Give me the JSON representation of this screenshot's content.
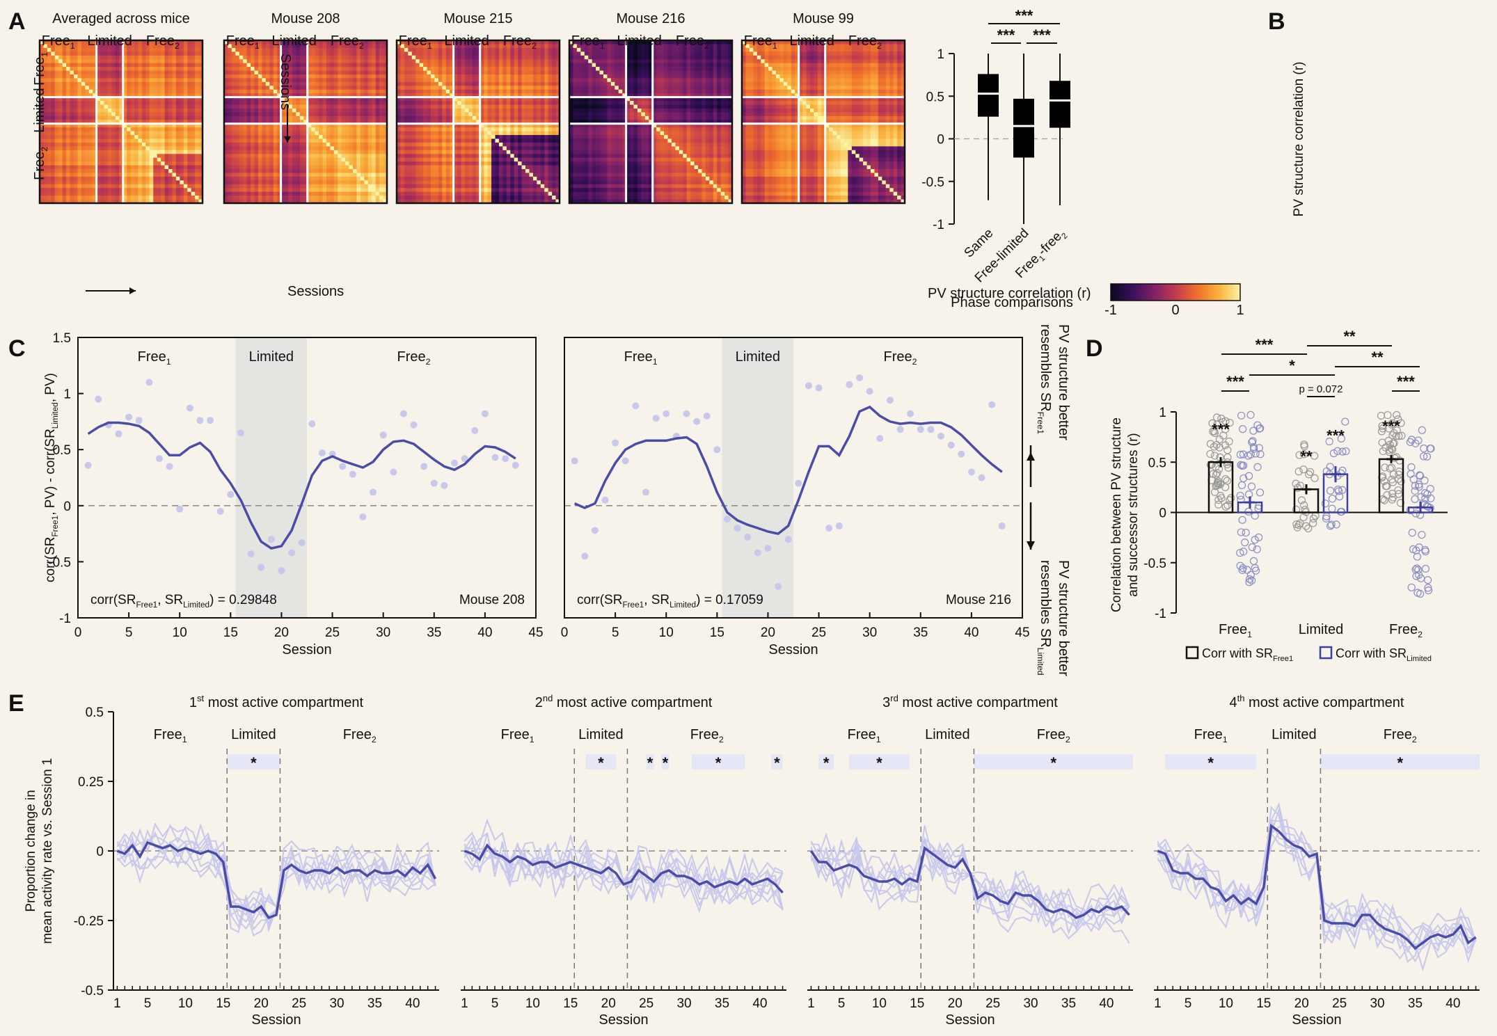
{
  "panels": {
    "a": "A",
    "b": "B",
    "c": "C",
    "d": "D",
    "e": "E"
  },
  "panel_a": {
    "matrices": [
      {
        "title": "Averaged across mice",
        "seed": 11,
        "contrast": 0.55,
        "base": 0.45
      },
      {
        "title": "Mouse 208",
        "seed": 23,
        "contrast": 0.75,
        "base": 0.55
      },
      {
        "title": "Mouse 215",
        "seed": 37,
        "contrast": 1.1,
        "base": 0.15
      },
      {
        "title": "Mouse 216",
        "seed": 51,
        "contrast": 1.0,
        "base": 0.2
      },
      {
        "title": "Mouse 99",
        "seed": 73,
        "contrast": 1.0,
        "base": 0.25
      }
    ],
    "phase_labels": {
      "free1": "Free",
      "limited": "Limited",
      "free2": "Free",
      "sub1": "1",
      "sub2": "2"
    },
    "sessions_label": "Sessions",
    "colorbar": {
      "label": "PV structure correlation (r)",
      "ticks": [
        "-1",
        "0",
        "1"
      ],
      "stops": [
        "#0a0a20",
        "#3a0f5c",
        "#7e2168",
        "#c13a4f",
        "#ef6f2c",
        "#f9b13b",
        "#fcf3a4"
      ]
    },
    "limited_index": [
      15,
      22
    ],
    "n_sessions": 43
  },
  "chart_data": [
    {
      "id": "B",
      "type": "boxplot",
      "ylabel": "PV structure correlation (r)",
      "xlabel": "Phase comparisons",
      "categories": [
        "Same",
        "Free-limited",
        "Free1-free2"
      ],
      "category_labels": [
        {
          "main": "Same",
          "sub": ""
        },
        {
          "main": "Free-limited",
          "sub": ""
        },
        {
          "main": "Free",
          "sub": "1",
          "tail": "-free",
          "sub2": "2"
        }
      ],
      "boxes": [
        {
          "min": -0.72,
          "q1": 0.26,
          "median": 0.53,
          "q3": 0.76,
          "max": 1.0
        },
        {
          "min": -1.0,
          "q1": -0.22,
          "median": 0.15,
          "q3": 0.47,
          "max": 1.0
        },
        {
          "min": -0.78,
          "q1": 0.13,
          "median": 0.45,
          "q3": 0.68,
          "max": 1.0
        }
      ],
      "ylim": [
        -1,
        1
      ],
      "yticks": [
        "-1",
        "-0.5",
        "0",
        "0.5",
        "1"
      ],
      "significance": [
        {
          "from": 0,
          "to": 1,
          "label": "***"
        },
        {
          "from": 1,
          "to": 2,
          "label": "***"
        },
        {
          "from": 0,
          "to": 2,
          "label": "***"
        }
      ]
    },
    {
      "id": "C1",
      "type": "line+scatter",
      "mouse": "Mouse 208",
      "annotation": "corr(SR",
      "annotation_sub1": "Free1",
      "annotation_mid": ", SR",
      "annotation_sub2": "Limited",
      "annotation_tail": ") =",
      "annotation_value": "0.29848",
      "xlim": [
        0,
        45
      ],
      "ylim": [
        -1,
        1.5
      ],
      "xticks": [
        "0",
        "5",
        "10",
        "15",
        "20",
        "25",
        "30",
        "35",
        "40",
        "45"
      ],
      "yticks": [
        "-1",
        "-0.5",
        "0",
        "0.5",
        "1",
        "1.5"
      ],
      "xlabel": "Session",
      "ylabel": "corr(SR",
      "ylabel_parts": [
        "corr(SR",
        "Free1",
        ", PV) - corr(SR",
        "Limited",
        ", PV)"
      ],
      "shaded": [
        15.5,
        22.5
      ],
      "phase_labels": [
        "Free",
        "Limited",
        "Free"
      ],
      "phase_subs": [
        "1",
        "",
        "2"
      ],
      "points_x": [
        1,
        2,
        3,
        4,
        5,
        6,
        7,
        8,
        9,
        10,
        11,
        12,
        13,
        14,
        15,
        16,
        17,
        18,
        19,
        20,
        21,
        22,
        23,
        24,
        25,
        26,
        27,
        28,
        29,
        30,
        31,
        32,
        33,
        34,
        35,
        36,
        37,
        38,
        39,
        40,
        41,
        42,
        43
      ],
      "points_y": [
        0.36,
        0.95,
        0.72,
        0.64,
        0.79,
        0.76,
        1.1,
        0.42,
        0.35,
        -0.03,
        0.87,
        0.76,
        0.76,
        -0.05,
        0.1,
        0.65,
        -0.43,
        -0.55,
        -0.3,
        -0.58,
        -0.42,
        -0.33,
        0.73,
        0.47,
        0.46,
        0.35,
        0.28,
        -0.1,
        0.12,
        0.63,
        0.3,
        0.82,
        0.72,
        0.35,
        0.2,
        0.18,
        0.38,
        0.42,
        0.67,
        0.82,
        0.43,
        0.42,
        0.36
      ],
      "smooth_y": [
        0.64,
        0.7,
        0.74,
        0.74,
        0.73,
        0.71,
        0.65,
        0.55,
        0.45,
        0.45,
        0.52,
        0.56,
        0.48,
        0.32,
        0.2,
        0.05,
        -0.15,
        -0.32,
        -0.38,
        -0.36,
        -0.22,
        0.02,
        0.27,
        0.4,
        0.44,
        0.4,
        0.37,
        0.34,
        0.39,
        0.5,
        0.57,
        0.58,
        0.55,
        0.48,
        0.41,
        0.35,
        0.32,
        0.37,
        0.46,
        0.53,
        0.52,
        0.48,
        0.42
      ]
    },
    {
      "id": "C2",
      "type": "line+scatter",
      "mouse": "Mouse 216",
      "annotation": "corr(SR",
      "annotation_sub1": "Free1",
      "annotation_mid": ", SR",
      "annotation_sub2": "Limited",
      "annotation_tail": ") =",
      "annotation_value": "0.17059",
      "xlim": [
        0,
        45
      ],
      "ylim": [
        -1,
        1.5
      ],
      "xticks": [
        "0",
        "5",
        "10",
        "15",
        "20",
        "25",
        "30",
        "35",
        "40",
        "45"
      ],
      "xlabel": "Session",
      "shaded": [
        15.5,
        22.5
      ],
      "phase_labels": [
        "Free",
        "Limited",
        "Free"
      ],
      "phase_subs": [
        "1",
        "",
        "2"
      ],
      "points_x": [
        1,
        2,
        3,
        4,
        5,
        6,
        7,
        8,
        9,
        10,
        11,
        12,
        13,
        14,
        15,
        16,
        17,
        18,
        19,
        20,
        21,
        22,
        23,
        24,
        25,
        26,
        27,
        28,
        29,
        30,
        31,
        32,
        33,
        34,
        35,
        36,
        37,
        38,
        39,
        40,
        41,
        42,
        43
      ],
      "points_y": [
        0.4,
        -0.45,
        -0.22,
        0.05,
        0.56,
        0.4,
        0.89,
        0.12,
        0.78,
        0.82,
        0.62,
        0.82,
        0.75,
        0.8,
        0.5,
        -0.12,
        -0.2,
        -0.28,
        -0.42,
        -0.38,
        -0.72,
        -0.3,
        0.2,
        1.07,
        1.05,
        -0.2,
        -0.18,
        1.08,
        1.14,
        1.02,
        0.6,
        0.94,
        0.68,
        0.82,
        0.68,
        0.68,
        0.62,
        0.54,
        0.46,
        0.3,
        0.25,
        0.9,
        -0.18
      ],
      "smooth_y": [
        0.02,
        -0.02,
        0.02,
        0.22,
        0.38,
        0.5,
        0.55,
        0.58,
        0.58,
        0.58,
        0.6,
        0.61,
        0.55,
        0.35,
        0.12,
        -0.06,
        -0.13,
        -0.17,
        -0.2,
        -0.23,
        -0.25,
        -0.18,
        0.05,
        0.3,
        0.53,
        0.53,
        0.45,
        0.62,
        0.84,
        0.88,
        0.8,
        0.75,
        0.73,
        0.74,
        0.73,
        0.74,
        0.74,
        0.7,
        0.63,
        0.54,
        0.45,
        0.37,
        0.3
      ]
    },
    {
      "id": "D",
      "type": "bar+scatter",
      "ylabel": [
        "Correlation between PV structure",
        "and successor structures (r)"
      ],
      "categories": [
        "Free1",
        "Limited",
        "Free2"
      ],
      "category_mains": [
        "Free",
        "Limited",
        "Free"
      ],
      "category_subs": [
        "1",
        "",
        "2"
      ],
      "ylim": [
        -1,
        1
      ],
      "yticks": [
        "-1",
        "-0.5",
        "0",
        "0.5",
        "1"
      ],
      "series": [
        {
          "name": "Corr with SR Free1",
          "legend_main": "Corr with SR",
          "legend_sub": "Free1",
          "color": "#111111",
          "values": [
            0.5,
            0.23,
            0.53
          ],
          "errors": [
            0.05,
            0.05,
            0.04
          ],
          "stars": [
            "***",
            "**",
            "***"
          ]
        },
        {
          "name": "Corr with SR Limited",
          "legend_main": "Corr with SR",
          "legend_sub": "Limited",
          "color": "#3b3f9e",
          "values": [
            0.1,
            0.38,
            0.05
          ],
          "errors": [
            0.06,
            0.08,
            0.06
          ],
          "stars": [
            "",
            "***",
            ""
          ]
        }
      ],
      "pair_stars": [
        "***",
        "p = 0.072",
        "***"
      ],
      "brackets": [
        {
          "label": "***"
        },
        {
          "label": "**"
        },
        {
          "label": "*"
        },
        {
          "label": "**"
        }
      ]
    },
    {
      "id": "E",
      "type": "line",
      "ylabel": [
        "Proportion change in",
        "mean activity rate vs. Session 1"
      ],
      "xlabel": "Session",
      "ylim": [
        -0.5,
        0.5
      ],
      "yticks": [
        "-0.5",
        "-0.25",
        "0",
        "0.25",
        "0.5"
      ],
      "xticks": [
        "1",
        "5",
        "10",
        "15",
        "20",
        "25",
        "30",
        "35",
        "40"
      ],
      "phase_labels": [
        "Free",
        "Limited",
        "Free"
      ],
      "phase_subs": [
        "1",
        "",
        "2"
      ],
      "boundaries": [
        15.5,
        22.5
      ],
      "subplots": [
        {
          "title_num": "1",
          "title_sup": "st",
          "title_rest": " most active compartment",
          "seed": 3,
          "sig": [
            {
              "from": 15.5,
              "to": 22.5,
              "label": "*"
            }
          ],
          "mean": [
            0,
            -0.01,
            0.02,
            -0.02,
            0.03,
            0.02,
            0.01,
            0.02,
            0,
            0.01,
            0,
            -0.01,
            0,
            -0.01,
            -0.04,
            -0.2,
            -0.2,
            -0.21,
            -0.22,
            -0.2,
            -0.24,
            -0.23,
            -0.07,
            -0.05,
            -0.07,
            -0.08,
            -0.07,
            -0.07,
            -0.08,
            -0.06,
            -0.08,
            -0.07,
            -0.07,
            -0.09,
            -0.07,
            -0.08,
            -0.08,
            -0.07,
            -0.09,
            -0.06,
            -0.08,
            -0.05,
            -0.1
          ]
        },
        {
          "title_num": "2",
          "title_sup": "nd",
          "title_rest": " most active compartment",
          "seed": 5,
          "sig": [
            {
              "from": 17,
              "to": 21,
              "label": "*"
            },
            {
              "from": 25,
              "to": 26,
              "label": "*"
            },
            {
              "from": 27,
              "to": 28,
              "label": "*"
            },
            {
              "from": 31,
              "to": 38,
              "label": "*"
            },
            {
              "from": 41.5,
              "to": 43,
              "label": "*"
            }
          ],
          "mean": [
            0,
            -0.01,
            -0.03,
            0.02,
            -0.01,
            -0.02,
            -0.04,
            -0.02,
            -0.03,
            -0.05,
            -0.04,
            -0.04,
            -0.06,
            -0.05,
            -0.04,
            -0.05,
            -0.06,
            -0.07,
            -0.08,
            -0.06,
            -0.08,
            -0.12,
            -0.11,
            -0.07,
            -0.09,
            -0.11,
            -0.08,
            -0.07,
            -0.09,
            -0.09,
            -0.1,
            -0.12,
            -0.11,
            -0.13,
            -0.12,
            -0.11,
            -0.12,
            -0.1,
            -0.12,
            -0.11,
            -0.1,
            -0.12,
            -0.15
          ]
        },
        {
          "title_num": "3",
          "title_sup": "rd",
          "title_rest": " most active compartment",
          "seed": 7,
          "sig": [
            {
              "from": 2,
              "to": 4,
              "label": "*"
            },
            {
              "from": 6,
              "to": 14,
              "label": "*"
            },
            {
              "from": 22.5,
              "to": 43.5,
              "label": "*"
            }
          ],
          "mean": [
            0,
            -0.04,
            -0.04,
            -0.07,
            -0.06,
            -0.05,
            -0.06,
            -0.09,
            -0.1,
            -0.11,
            -0.11,
            -0.1,
            -0.12,
            -0.1,
            -0.11,
            0.01,
            -0.01,
            -0.03,
            -0.05,
            -0.06,
            -0.03,
            -0.08,
            -0.17,
            -0.15,
            -0.16,
            -0.18,
            -0.19,
            -0.15,
            -0.16,
            -0.16,
            -0.18,
            -0.21,
            -0.22,
            -0.21,
            -0.22,
            -0.24,
            -0.23,
            -0.21,
            -0.22,
            -0.2,
            -0.21,
            -0.2,
            -0.23
          ]
        },
        {
          "title_num": "4",
          "title_sup": "th",
          "title_rest": " most active compartment",
          "seed": 9,
          "sig": [
            {
              "from": 2,
              "to": 14,
              "label": "*"
            },
            {
              "from": 22.5,
              "to": 43.5,
              "label": "*"
            }
          ],
          "mean": [
            0,
            -0.01,
            -0.07,
            -0.08,
            -0.08,
            -0.1,
            -0.1,
            -0.13,
            -0.14,
            -0.18,
            -0.16,
            -0.19,
            -0.17,
            -0.19,
            -0.13,
            0.09,
            0.07,
            0.04,
            0.02,
            0.01,
            -0.02,
            -0.01,
            -0.25,
            -0.26,
            -0.26,
            -0.26,
            -0.27,
            -0.23,
            -0.23,
            -0.26,
            -0.28,
            -0.29,
            -0.3,
            -0.32,
            -0.35,
            -0.33,
            -0.31,
            -0.3,
            -0.31,
            -0.3,
            -0.27,
            -0.33,
            -0.31
          ]
        }
      ]
    }
  ],
  "colors": {
    "accent": "#4b4ca6",
    "light": "#c8c8ec",
    "shade": "#e4e4e0",
    "sigband": "#e6e7f6",
    "bg": "#f7f3ea"
  },
  "right_annotations": {
    "top": [
      "PV structure better",
      "resembles SR"
    ],
    "top_sub": "Free1",
    "bottom": [
      "PV structure better",
      "resembles SR"
    ],
    "bottom_sub": "Limited"
  }
}
